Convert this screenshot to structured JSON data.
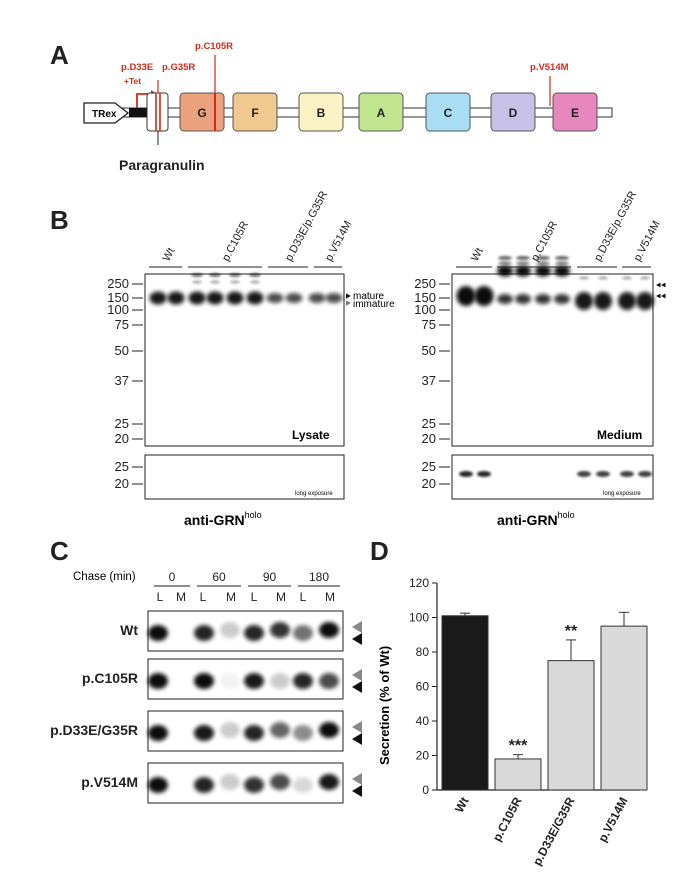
{
  "panels": {
    "a": "A",
    "b": "B",
    "c": "C",
    "d": "D"
  },
  "panel_a": {
    "promoter": "TRex",
    "tet": "+Tet",
    "domains": [
      "G",
      "F",
      "B",
      "A",
      "C",
      "D",
      "E"
    ],
    "domain_colors": [
      "#e9a27b",
      "#f0c890",
      "#fbf3c4",
      "#bfe58f",
      "#a9ddf3",
      "#c7c0e8",
      "#e887bd"
    ],
    "mutations": {
      "d33e": "p.D33E",
      "g35r": "p.G35R",
      "c105r": "p.C105R",
      "v514m": "p.V514M"
    },
    "paragranulin": "Paragranulin"
  },
  "panel_b": {
    "left": {
      "groups": [
        "Wt",
        "p.C105R",
        "p.D33E/p.G35R",
        "p.V514M"
      ],
      "mw": [
        "250",
        "150",
        "100",
        "75",
        "50",
        "37",
        "25",
        "20"
      ],
      "mw_small": [
        "25",
        "20"
      ],
      "label": "Lysate",
      "long_exposure": "long exposure",
      "antibody": "anti-GRN",
      "antibody_sup": "holo",
      "mature": "mature",
      "immature": "immature"
    },
    "right": {
      "groups": [
        "Wt",
        "p.C105R",
        "p.D33E/p.G35R",
        "p.V514M"
      ],
      "mw": [
        "250",
        "150",
        "100",
        "75",
        "50",
        "37",
        "25",
        "20"
      ],
      "mw_small": [
        "25",
        "20"
      ],
      "label": "Medium",
      "long_exposure": "long exposure",
      "antibody": "anti-GRN",
      "antibody_sup": "holo"
    }
  },
  "panel_c": {
    "chase_label": "Chase (min)",
    "timepoints": [
      "0",
      "60",
      "90",
      "180"
    ],
    "lane_L": "L",
    "lane_M": "M",
    "rows": [
      "Wt",
      "p.C105R",
      "p.D33E/G35R",
      "p.V514M"
    ]
  },
  "chart_data": {
    "type": "bar",
    "categories": [
      "Wt",
      "p.C105R",
      "p.D33E/G35R",
      "p.V514M"
    ],
    "values": [
      101,
      18,
      75,
      95
    ],
    "errors": [
      1.5,
      2.5,
      12,
      8
    ],
    "significance": [
      "",
      "***",
      "**",
      ""
    ],
    "colors": [
      "#1a1a1a",
      "#d9d9d9",
      "#d9d9d9",
      "#d9d9d9"
    ],
    "ylabel": "Secretion (% of Wt)",
    "yticks": [
      "0",
      "20",
      "40",
      "60",
      "80",
      "100",
      "120"
    ],
    "ylim": [
      0,
      120
    ]
  }
}
